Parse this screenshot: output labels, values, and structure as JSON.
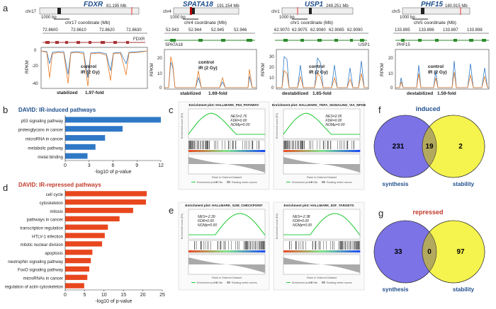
{
  "panel_labels": {
    "a": "a",
    "b": "b",
    "c": "c",
    "d": "d",
    "e": "e",
    "f": "f",
    "g": "g"
  },
  "colors": {
    "control": "#2f78c6",
    "ir": "#e8771e",
    "stabilized": "#1f5fb0",
    "destabilized": "#c0392b",
    "title_blue": "#1f4e8c",
    "bar_blue": "#2f78c6",
    "bar_red": "#e8471e",
    "venn_left": "#7b73e6",
    "venn_right": "#f5f34d",
    "venn_overlap": "#b3a95e"
  },
  "tracks": [
    {
      "gene": "FDXR",
      "chrom": "chr17",
      "pos": "81.195 Mb",
      "scale": "1000 bp",
      "coord_label": "chr17 coordinate (Mb)",
      "ticks": [
        "72.8600",
        "72.8610",
        "72.8620",
        "72.8630"
      ],
      "gene_label": "FDXR",
      "legend_control": "control",
      "legend_ir": "IR (2 Gy)",
      "yticks": [
        "0",
        "-20",
        "-40"
      ],
      "ylabel": "RPKM",
      "verdict": "stabilized",
      "fold": "1.97-fold"
    },
    {
      "gene": "SPATA18",
      "chrom": "chr4",
      "pos": "191.154 Mb",
      "scale": "1000 bp",
      "coord_label": "chr4 coordinate (Mb)",
      "ticks": [
        "52.943",
        "52.944",
        "52.945",
        "52.946"
      ],
      "gene_label": "SPATA18",
      "legend_control": "control",
      "legend_ir": "IR (2 Gy)",
      "yticks": [
        "0",
        "10",
        "20"
      ],
      "ylabel": "RPKM",
      "verdict": "stabilized",
      "fold": "1.69-fold"
    },
    {
      "gene": "USP1",
      "chrom": "chr1",
      "pos": "249.251 Mb",
      "scale": "1000 bp",
      "coord_label": "chr1 coordinate (Mb)",
      "ticks": [
        "62.9070",
        "62.9075",
        "62.9080",
        "62.9085",
        "62.9090"
      ],
      "gene_label": "USP1",
      "legend_control": "control",
      "legend_ir": "IR (2 Gy)",
      "yticks": [
        "0",
        "10",
        "20",
        "30"
      ],
      "ylabel": "RPKM",
      "verdict": "destabilized",
      "fold": "1.65-fold"
    },
    {
      "gene": "PHF15",
      "chrom": "chr5",
      "pos": "180.915 Mb",
      "scale": "1000 bp",
      "coord_label": "chr5 coordinate (Mb)",
      "ticks": [
        "133.895",
        "133.896",
        "133.897",
        "133.898"
      ],
      "gene_label": "PHF15",
      "legend_control": "control",
      "legend_ir": "IR (2 Gy)",
      "yticks": [
        "0",
        "10",
        "20"
      ],
      "ylabel": "RPKM",
      "verdict": "destabilized",
      "fold": "1.59-fold"
    }
  ],
  "chart_data": [
    {
      "type": "bar",
      "title": "DAVID: IR-induced pathways",
      "categories": [
        "p53 signaling pathway",
        "proteoglycans in cancer",
        "microRNA in cancer",
        "metabolic pathway",
        "metal binding"
      ],
      "values": [
        12,
        7.2,
        5,
        3.8,
        2.8
      ],
      "xlabel": "-log10 of p-value",
      "xlim": [
        0,
        12
      ],
      "xticks": [
        "0",
        "3",
        "6",
        "9",
        "12"
      ]
    },
    {
      "type": "bar",
      "title": "DAVID: IR-repressed pathways",
      "categories": [
        "cell cycle",
        "cytoskeleton",
        "mitosis",
        "pathways in cancer",
        "transcription regulation",
        "HTLV-1 infection",
        "mitotic nuclear division",
        "apoptosis",
        "neutrophin signaling pathway",
        "FoxO signaling pathway",
        "microRNAs in cancer",
        "regulation of actin cytoskeleton"
      ],
      "values": [
        21,
        20.8,
        17.5,
        14,
        11,
        10.2,
        9.5,
        7,
        6.6,
        6.2,
        5.7,
        4.9
      ],
      "xlabel": "-log10 of p-value",
      "xlim": [
        0,
        25
      ],
      "xticks": [
        "0",
        "5",
        "10",
        "15",
        "20",
        "25"
      ]
    }
  ],
  "gsea": [
    {
      "title": "Enrichment plot: HALLMARK_P53_PATHWAY",
      "nes": "NES=2.76",
      "fdr": "FDR=0.00",
      "nom": "NOMp=0.00",
      "ylabel": "Enrichment score (ES)",
      "xlabel": "Rank in Ordered Dataset",
      "legend1": "Enrichment profile",
      "legend2": "Hits",
      "legend3": "Ranking metric scores"
    },
    {
      "title": "Enrichment plot: HALLMARK_TNFA_SIGNALING_VIA_NFKB",
      "nes": "NES=2.05",
      "fdr": "FDR=0.00",
      "nom": "NOMp=0.00",
      "ylabel": "Enrichment score (ES)",
      "xlabel": "Rank in Ordered Dataset",
      "legend1": "Enrichment profile",
      "legend2": "Hits",
      "legend3": "Ranking metric scores"
    },
    {
      "title": "Enrichment plot: HALLMARK_G2M_CHECKPOINT",
      "nes": "NES=-2.39",
      "fdr": "FDR=0.00",
      "nom": "NOMp=0.00",
      "ylabel": "Enrichment score (ES)",
      "xlabel": "Rank in Ordered Dataset",
      "legend1": "Enrichment profile",
      "legend2": "Hits",
      "legend3": "Ranking metric scores"
    },
    {
      "title": "Enrichment plot: HALLMARK_E2F_TARGETS",
      "nes": "NES=-2.38",
      "fdr": "FDR=0.00",
      "nom": "NOMp=0.00",
      "ylabel": "Enrichment score (ES)",
      "xlabel": "Rank in Ordered Dataset",
      "legend1": "Enrichment profile",
      "legend2": "Hits",
      "legend3": "Ranking metric scores"
    }
  ],
  "venn": [
    {
      "title": "induced",
      "left": "231",
      "middle": "19",
      "right": "2",
      "left_label": "synthesis",
      "right_label": "stability"
    },
    {
      "title": "repressed",
      "left": "33",
      "middle": "0",
      "right": "97",
      "left_label": "synthesis",
      "right_label": "stability"
    }
  ]
}
